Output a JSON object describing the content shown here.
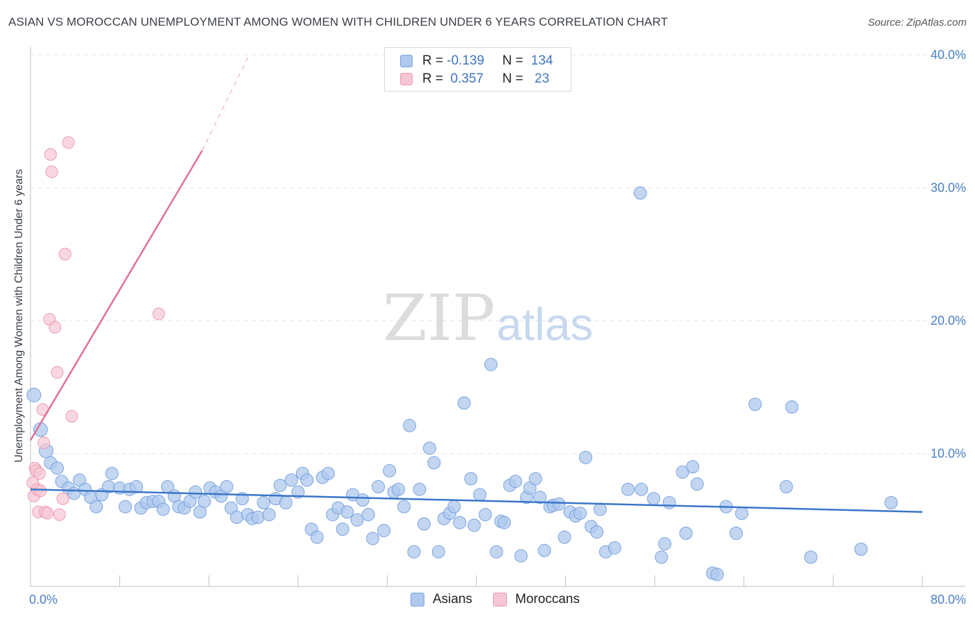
{
  "title": "ASIAN VS MOROCCAN UNEMPLOYMENT AMONG WOMEN WITH CHILDREN UNDER 6 YEARS CORRELATION CHART",
  "source": "Source: ZipAtlas.com",
  "watermark": {
    "zip": "ZIP",
    "atlas": "atlas"
  },
  "legend_top": {
    "rows": [
      {
        "r_label": "R =",
        "r_value": "-0.139",
        "n_label": "N =",
        "n_value": "134",
        "color": "#aec8ee",
        "border": "#7aa3de"
      },
      {
        "r_label": "R =",
        "r_value": " 0.357",
        "n_label": "N =",
        "n_value": " 23",
        "color": "#f7c6d4",
        "border": "#ee9ab3"
      }
    ]
  },
  "legend_bottom": [
    {
      "label": "Asians",
      "color": "#aec8ee",
      "border": "#7aa3de"
    },
    {
      "label": "Moroccans",
      "color": "#f7c6d4",
      "border": "#ee9ab3"
    }
  ],
  "chart_data": {
    "type": "scatter",
    "ylabel": "Unemployment Among Women with Children Under 6 years",
    "xlim": [
      0,
      80
    ],
    "ylim": [
      0,
      40
    ],
    "x_tick_labels": [
      {
        "value": 0,
        "label": "0.0%"
      },
      {
        "value": 80,
        "label": "80.0%"
      }
    ],
    "y_tick_labels": [
      {
        "value": 10,
        "label": "10.0%"
      },
      {
        "value": 20,
        "label": "20.0%"
      },
      {
        "value": 30,
        "label": "30.0%"
      },
      {
        "value": 40,
        "label": "40.0%"
      }
    ],
    "colors": {
      "asians": "#aec8ee",
      "asians_stroke": "#7aa3de",
      "asians_line": "#3a75c9",
      "moroccans": "#f7c6d4",
      "moroccans_stroke": "#ee9ab3",
      "moroccans_line": "#e07099"
    },
    "series": [
      {
        "name": "Asians",
        "points": [
          [
            0.3,
            14.4
          ],
          [
            0.9,
            11.8
          ],
          [
            1.4,
            10.2
          ],
          [
            1.8,
            9.3
          ],
          [
            2.4,
            8.9
          ],
          [
            2.8,
            7.9
          ],
          [
            3.4,
            7.4
          ],
          [
            3.9,
            7.0
          ],
          [
            4.4,
            8.0
          ],
          [
            4.9,
            7.3
          ],
          [
            5.4,
            6.7
          ],
          [
            5.9,
            6.0
          ],
          [
            6.4,
            6.9
          ],
          [
            7.0,
            7.5
          ],
          [
            7.3,
            8.5
          ],
          [
            8.0,
            7.4
          ],
          [
            8.5,
            6.0
          ],
          [
            8.9,
            7.3
          ],
          [
            9.5,
            7.5
          ],
          [
            9.9,
            5.9
          ],
          [
            10.4,
            6.3
          ],
          [
            11.0,
            6.4
          ],
          [
            11.5,
            6.4
          ],
          [
            11.9,
            5.8
          ],
          [
            12.3,
            7.5
          ],
          [
            12.9,
            6.8
          ],
          [
            13.3,
            6.0
          ],
          [
            13.8,
            5.9
          ],
          [
            14.3,
            6.4
          ],
          [
            14.8,
            7.1
          ],
          [
            15.2,
            5.6
          ],
          [
            15.6,
            6.4
          ],
          [
            16.1,
            7.4
          ],
          [
            16.6,
            7.1
          ],
          [
            17.1,
            6.8
          ],
          [
            17.6,
            7.5
          ],
          [
            18.0,
            5.9
          ],
          [
            18.5,
            5.2
          ],
          [
            19.0,
            6.6
          ],
          [
            19.5,
            5.4
          ],
          [
            19.9,
            5.1
          ],
          [
            20.4,
            5.2
          ],
          [
            20.9,
            6.3
          ],
          [
            21.4,
            5.4
          ],
          [
            22.0,
            6.6
          ],
          [
            22.4,
            7.6
          ],
          [
            22.9,
            6.3
          ],
          [
            23.4,
            8.0
          ],
          [
            24.0,
            7.1
          ],
          [
            24.4,
            8.5
          ],
          [
            24.8,
            8.0
          ],
          [
            25.2,
            4.3
          ],
          [
            25.7,
            3.7
          ],
          [
            26.2,
            8.2
          ],
          [
            26.7,
            8.5
          ],
          [
            27.1,
            5.4
          ],
          [
            27.6,
            5.9
          ],
          [
            28.0,
            4.3
          ],
          [
            28.4,
            5.6
          ],
          [
            28.9,
            6.9
          ],
          [
            29.3,
            5.0
          ],
          [
            29.8,
            6.5
          ],
          [
            30.3,
            5.4
          ],
          [
            30.7,
            3.6
          ],
          [
            31.2,
            7.5
          ],
          [
            31.7,
            4.2
          ],
          [
            32.2,
            8.7
          ],
          [
            32.6,
            7.1
          ],
          [
            33.0,
            7.3
          ],
          [
            33.5,
            6.0
          ],
          [
            34.0,
            12.1
          ],
          [
            34.4,
            2.6
          ],
          [
            34.9,
            7.3
          ],
          [
            35.3,
            4.7
          ],
          [
            35.8,
            10.4
          ],
          [
            36.2,
            9.3
          ],
          [
            36.6,
            2.6
          ],
          [
            37.1,
            5.1
          ],
          [
            37.6,
            5.5
          ],
          [
            38.0,
            6.0
          ],
          [
            38.5,
            4.8
          ],
          [
            38.9,
            13.8
          ],
          [
            39.5,
            8.1
          ],
          [
            39.8,
            4.6
          ],
          [
            40.3,
            6.9
          ],
          [
            40.8,
            5.4
          ],
          [
            41.3,
            16.7
          ],
          [
            41.8,
            2.6
          ],
          [
            42.2,
            4.9
          ],
          [
            42.5,
            4.8
          ],
          [
            43.0,
            7.6
          ],
          [
            43.5,
            7.9
          ],
          [
            44.0,
            2.3
          ],
          [
            44.5,
            6.7
          ],
          [
            44.8,
            7.4
          ],
          [
            45.3,
            8.1
          ],
          [
            45.7,
            6.7
          ],
          [
            46.1,
            2.7
          ],
          [
            46.6,
            6.0
          ],
          [
            46.9,
            6.1
          ],
          [
            47.4,
            6.2
          ],
          [
            47.9,
            3.7
          ],
          [
            48.4,
            5.6
          ],
          [
            48.9,
            5.3
          ],
          [
            49.3,
            5.5
          ],
          [
            49.8,
            9.7
          ],
          [
            50.3,
            4.5
          ],
          [
            50.8,
            4.1
          ],
          [
            51.1,
            5.8
          ],
          [
            51.6,
            2.6
          ],
          [
            52.4,
            2.9
          ],
          [
            53.6,
            7.3
          ],
          [
            54.7,
            29.6
          ],
          [
            54.8,
            7.3
          ],
          [
            55.9,
            6.6
          ],
          [
            56.6,
            2.2
          ],
          [
            56.9,
            3.2
          ],
          [
            57.3,
            6.3
          ],
          [
            58.5,
            8.6
          ],
          [
            58.8,
            4.0
          ],
          [
            59.4,
            9.0
          ],
          [
            59.8,
            7.7
          ],
          [
            61.2,
            1.0
          ],
          [
            61.6,
            0.9
          ],
          [
            62.4,
            6.0
          ],
          [
            63.3,
            4.0
          ],
          [
            63.8,
            5.5
          ],
          [
            65.0,
            13.7
          ],
          [
            67.8,
            7.5
          ],
          [
            68.3,
            13.5
          ],
          [
            70.0,
            2.2
          ],
          [
            74.5,
            2.8
          ],
          [
            77.2,
            6.3
          ]
        ],
        "trend": {
          "x": [
            0,
            80
          ],
          "y": [
            7.3,
            5.6
          ]
        }
      },
      {
        "name": "Moroccans",
        "points": [
          [
            0.2,
            7.8
          ],
          [
            0.3,
            6.8
          ],
          [
            0.4,
            8.9
          ],
          [
            0.5,
            8.7
          ],
          [
            0.6,
            7.3
          ],
          [
            0.7,
            5.6
          ],
          [
            0.8,
            8.5
          ],
          [
            0.9,
            7.2
          ],
          [
            1.1,
            13.3
          ],
          [
            1.2,
            10.8
          ],
          [
            1.3,
            5.6
          ],
          [
            1.5,
            5.5
          ],
          [
            1.7,
            20.1
          ],
          [
            1.8,
            32.5
          ],
          [
            1.9,
            31.2
          ],
          [
            2.2,
            19.5
          ],
          [
            2.4,
            16.1
          ],
          [
            2.6,
            5.4
          ],
          [
            2.9,
            6.6
          ],
          [
            3.1,
            25.0
          ],
          [
            3.4,
            33.4
          ],
          [
            3.7,
            12.8
          ],
          [
            11.5,
            20.5
          ]
        ],
        "trend": {
          "x": [
            0,
            15.4
          ],
          "y": [
            11.0,
            32.8
          ]
        },
        "trend_extension": {
          "x": [
            15.4,
            19.5
          ],
          "y": [
            32.8,
            39.8
          ]
        }
      }
    ]
  }
}
